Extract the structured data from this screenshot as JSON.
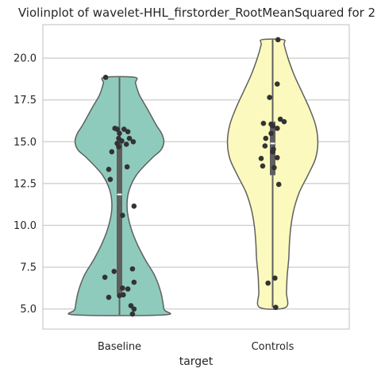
{
  "chart_data": {
    "type": "violin",
    "title": "Violinplot of wavelet-HHL_firstorder_RootMeanSquared for 2",
    "xlabel": "target",
    "ylabel": "",
    "categories": [
      "Baseline",
      "Controls"
    ],
    "ylim": [
      3.8,
      22.0
    ],
    "yticks": [
      5.0,
      7.5,
      10.0,
      12.5,
      15.0,
      17.5,
      20.0
    ],
    "ytick_labels": [
      "5.0",
      "7.5",
      "10.0",
      "12.5",
      "15.0",
      "17.5",
      "20.0"
    ],
    "grid": "horizontal",
    "cut": "range",
    "series": [
      {
        "category": "Baseline",
        "color": "#8ecbbd",
        "edge_color": "#5f5f5f",
        "range": [
          4.65,
          18.85
        ],
        "box": {
          "q1": 5.9,
          "median": 11.85,
          "q3": 15.1
        },
        "profile": [
          [
            4.65,
            0.58
          ],
          [
            5.0,
            0.58
          ],
          [
            6.0,
            0.54
          ],
          [
            7.0,
            0.46
          ],
          [
            8.0,
            0.33
          ],
          [
            9.0,
            0.22
          ],
          [
            10.0,
            0.14
          ],
          [
            11.0,
            0.1
          ],
          [
            12.0,
            0.12
          ],
          [
            13.0,
            0.22
          ],
          [
            14.0,
            0.42
          ],
          [
            14.5,
            0.54
          ],
          [
            15.0,
            0.58
          ],
          [
            15.5,
            0.55
          ],
          [
            16.0,
            0.48
          ],
          [
            17.0,
            0.36
          ],
          [
            17.8,
            0.26
          ],
          [
            18.5,
            0.21
          ],
          [
            18.85,
            0.2
          ]
        ],
        "points": [
          [
            18.85,
            -0.18
          ],
          [
            15.8,
            -0.06
          ],
          [
            15.75,
            -0.03
          ],
          [
            15.5,
            0.0
          ],
          [
            15.2,
            -0.01
          ],
          [
            15.05,
            0.03
          ],
          [
            14.85,
            0.09
          ],
          [
            14.7,
            -0.01
          ],
          [
            15.75,
            0.06
          ],
          [
            15.6,
            0.11
          ],
          [
            15.2,
            0.13
          ],
          [
            15.0,
            0.18
          ],
          [
            14.4,
            -0.1
          ],
          [
            14.9,
            -0.03
          ],
          [
            13.5,
            0.1
          ],
          [
            13.35,
            -0.14
          ],
          [
            12.75,
            -0.12
          ],
          [
            11.15,
            0.19
          ],
          [
            10.6,
            0.04
          ],
          [
            7.4,
            0.17
          ],
          [
            7.25,
            -0.07
          ],
          [
            6.9,
            -0.19
          ],
          [
            6.6,
            0.19
          ],
          [
            6.25,
            0.04
          ],
          [
            6.2,
            0.11
          ],
          [
            5.85,
            0.05
          ],
          [
            5.8,
            0.0
          ],
          [
            5.7,
            -0.14
          ],
          [
            5.2,
            0.15
          ],
          [
            5.0,
            0.19
          ],
          [
            4.7,
            0.17
          ]
        ]
      },
      {
        "category": "Controls",
        "color": "#fbf9bd",
        "edge_color": "#5f5f5f",
        "range": [
          5.1,
          21.1
        ],
        "box": {
          "q1": 13.0,
          "median": 14.9,
          "q3": 16.2
        },
        "profile": [
          [
            5.1,
            0.17
          ],
          [
            6.0,
            0.18
          ],
          [
            7.0,
            0.19
          ],
          [
            8.0,
            0.21
          ],
          [
            9.0,
            0.22
          ],
          [
            10.0,
            0.24
          ],
          [
            11.0,
            0.28
          ],
          [
            12.0,
            0.35
          ],
          [
            13.0,
            0.46
          ],
          [
            14.0,
            0.56
          ],
          [
            15.0,
            0.59
          ],
          [
            16.0,
            0.56
          ],
          [
            17.0,
            0.48
          ],
          [
            18.0,
            0.38
          ],
          [
            19.0,
            0.28
          ],
          [
            20.0,
            0.2
          ],
          [
            20.8,
            0.15
          ],
          [
            21.1,
            0.14
          ]
        ],
        "points": [
          [
            21.1,
            0.07
          ],
          [
            18.45,
            0.06
          ],
          [
            17.65,
            -0.04
          ],
          [
            16.35,
            0.1
          ],
          [
            16.2,
            0.15
          ],
          [
            16.1,
            -0.12
          ],
          [
            16.05,
            -0.02
          ],
          [
            15.95,
            0.0
          ],
          [
            15.8,
            0.06
          ],
          [
            15.5,
            -0.02
          ],
          [
            15.2,
            -0.09
          ],
          [
            14.75,
            -0.1
          ],
          [
            14.55,
            0.01
          ],
          [
            14.4,
            0.0
          ],
          [
            14.0,
            -0.15
          ],
          [
            14.05,
            0.06
          ],
          [
            13.55,
            -0.13
          ],
          [
            13.45,
            0.02
          ],
          [
            12.45,
            0.08
          ],
          [
            6.85,
            0.03
          ],
          [
            6.55,
            -0.06
          ],
          [
            5.1,
            0.04
          ]
        ]
      }
    ]
  }
}
